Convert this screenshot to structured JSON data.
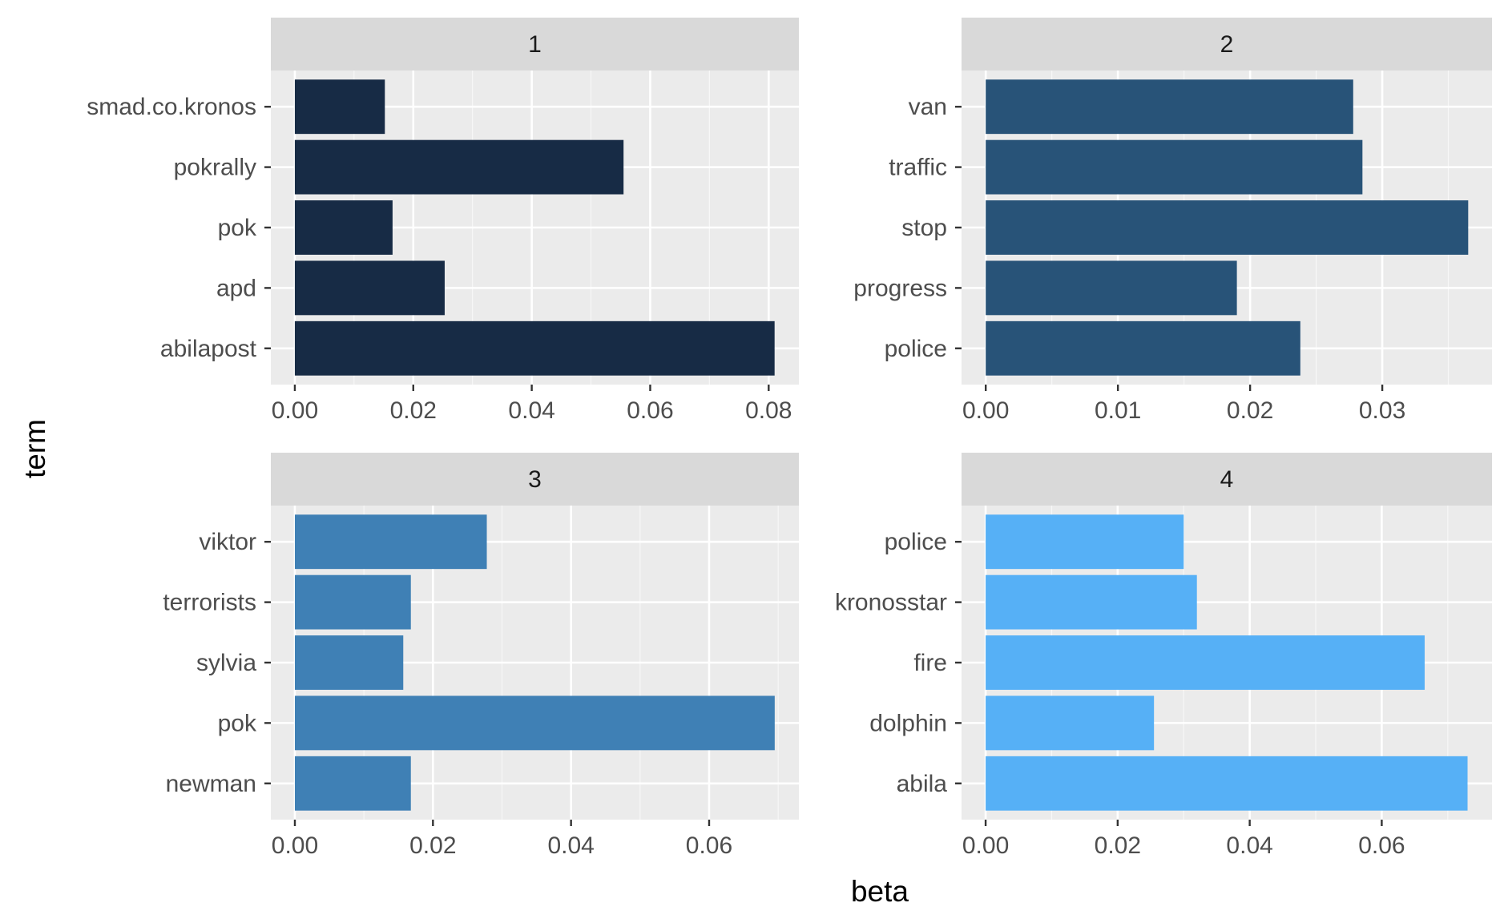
{
  "chart_data": {
    "type": "bar",
    "orientation": "horizontal",
    "xlabel": "beta",
    "ylabel": "term",
    "grid": true,
    "facet_layout": "2x2",
    "panels": [
      {
        "label": "1",
        "color": "#172B45",
        "categories": [
          "smad.co.kronos",
          "pokrally",
          "pok",
          "apd",
          "abilapost"
        ],
        "values": [
          0.0152,
          0.0555,
          0.0165,
          0.0253,
          0.081
        ],
        "xlim": [
          -0.00405,
          0.0851
        ],
        "ticks": [
          0,
          0.02,
          0.04,
          0.06,
          0.08
        ],
        "tick_labels": [
          "0.00",
          "0.02",
          "0.04",
          "0.06",
          "0.08"
        ]
      },
      {
        "label": "2",
        "color": "#285378",
        "categories": [
          "van",
          "traffic",
          "stop",
          "progress",
          "police"
        ],
        "values": [
          0.0278,
          0.0285,
          0.0365,
          0.019,
          0.0238
        ],
        "xlim": [
          -0.00183,
          0.0383
        ],
        "ticks": [
          0,
          0.01,
          0.02,
          0.03
        ],
        "tick_labels": [
          "0.00",
          "0.01",
          "0.02",
          "0.03"
        ]
      },
      {
        "label": "3",
        "color": "#3F80B5",
        "categories": [
          "viktor",
          "terrorists",
          "sylvia",
          "pok",
          "newman"
        ],
        "values": [
          0.0278,
          0.0168,
          0.0157,
          0.0695,
          0.0168
        ],
        "xlim": [
          -0.00348,
          0.073
        ],
        "ticks": [
          0,
          0.02,
          0.04,
          0.06
        ],
        "tick_labels": [
          "0.00",
          "0.02",
          "0.04",
          "0.06"
        ]
      },
      {
        "label": "4",
        "color": "#56B0F6",
        "categories": [
          "police",
          "kronosstar",
          "fire",
          "dolphin",
          "abila"
        ],
        "values": [
          0.03,
          0.032,
          0.0665,
          0.0255,
          0.073
        ],
        "xlim": [
          -0.00365,
          0.0767
        ],
        "ticks": [
          0,
          0.02,
          0.04,
          0.06
        ],
        "tick_labels": [
          "0.00",
          "0.02",
          "0.04",
          "0.06"
        ]
      }
    ]
  }
}
